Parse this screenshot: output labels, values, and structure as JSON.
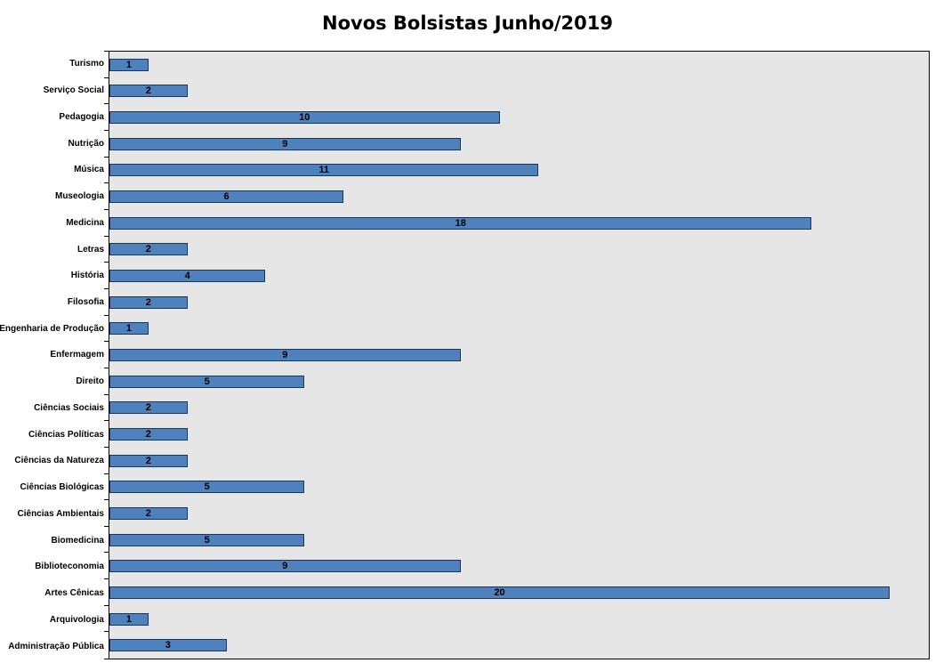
{
  "title": "Novos Bolsistas Junho/2019",
  "chart_data": {
    "type": "bar",
    "orientation": "horizontal",
    "title": "Novos Bolsistas Junho/2019",
    "categories": [
      "Turismo",
      "Serviço Social",
      "Pedagogia",
      "Nutrição",
      "Música",
      "Museologia",
      "Medicina",
      "Letras",
      "História",
      "Filosofia",
      "Engenharia de Produção",
      "Enfermagem",
      "Direito",
      "Ciências Sociais",
      "Ciências Políticas",
      "Ciências da Natureza",
      "Ciências Biológicas",
      "Ciências Ambientais",
      "Biomedicina",
      "Biblioteconomia",
      "Artes Cênicas",
      "Arquivologia",
      "Administração Pública"
    ],
    "values": [
      1,
      2,
      10,
      9,
      11,
      6,
      18,
      2,
      4,
      2,
      1,
      9,
      5,
      2,
      2,
      2,
      5,
      2,
      5,
      9,
      20,
      1,
      3
    ],
    "xlabel": "",
    "ylabel": "",
    "xlim": [
      0,
      21
    ],
    "grid": false,
    "legend": "none",
    "data_labels_position": "center",
    "colors": {
      "bar_fill": "#4F81BD",
      "bar_border": "#17375E",
      "plot_bg": "#E6E6E6",
      "plot_border": "#000000",
      "label_color": "#000000",
      "background": "#FFFFFF"
    }
  }
}
